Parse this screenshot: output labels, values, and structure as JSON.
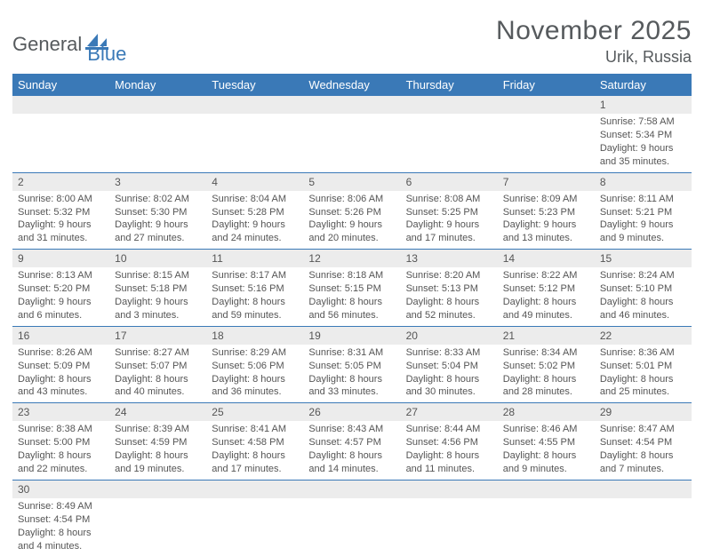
{
  "logo": {
    "part1": "General",
    "part2": "Blue"
  },
  "title": "November 2025",
  "location": "Urik, Russia",
  "colors": {
    "header_bg": "#3a79b7",
    "header_text": "#ffffff",
    "daynum_bg": "#ececec",
    "text": "#555555",
    "border": "#3a79b7",
    "logo_gray": "#565a5d",
    "logo_blue": "#3a79b7"
  },
  "weekdays": [
    "Sunday",
    "Monday",
    "Tuesday",
    "Wednesday",
    "Thursday",
    "Friday",
    "Saturday"
  ],
  "weeks": [
    [
      {
        "n": "",
        "sr": "",
        "ss": "",
        "dl": ""
      },
      {
        "n": "",
        "sr": "",
        "ss": "",
        "dl": ""
      },
      {
        "n": "",
        "sr": "",
        "ss": "",
        "dl": ""
      },
      {
        "n": "",
        "sr": "",
        "ss": "",
        "dl": ""
      },
      {
        "n": "",
        "sr": "",
        "ss": "",
        "dl": ""
      },
      {
        "n": "",
        "sr": "",
        "ss": "",
        "dl": ""
      },
      {
        "n": "1",
        "sr": "Sunrise: 7:58 AM",
        "ss": "Sunset: 5:34 PM",
        "dl": "Daylight: 9 hours and 35 minutes."
      }
    ],
    [
      {
        "n": "2",
        "sr": "Sunrise: 8:00 AM",
        "ss": "Sunset: 5:32 PM",
        "dl": "Daylight: 9 hours and 31 minutes."
      },
      {
        "n": "3",
        "sr": "Sunrise: 8:02 AM",
        "ss": "Sunset: 5:30 PM",
        "dl": "Daylight: 9 hours and 27 minutes."
      },
      {
        "n": "4",
        "sr": "Sunrise: 8:04 AM",
        "ss": "Sunset: 5:28 PM",
        "dl": "Daylight: 9 hours and 24 minutes."
      },
      {
        "n": "5",
        "sr": "Sunrise: 8:06 AM",
        "ss": "Sunset: 5:26 PM",
        "dl": "Daylight: 9 hours and 20 minutes."
      },
      {
        "n": "6",
        "sr": "Sunrise: 8:08 AM",
        "ss": "Sunset: 5:25 PM",
        "dl": "Daylight: 9 hours and 17 minutes."
      },
      {
        "n": "7",
        "sr": "Sunrise: 8:09 AM",
        "ss": "Sunset: 5:23 PM",
        "dl": "Daylight: 9 hours and 13 minutes."
      },
      {
        "n": "8",
        "sr": "Sunrise: 8:11 AM",
        "ss": "Sunset: 5:21 PM",
        "dl": "Daylight: 9 hours and 9 minutes."
      }
    ],
    [
      {
        "n": "9",
        "sr": "Sunrise: 8:13 AM",
        "ss": "Sunset: 5:20 PM",
        "dl": "Daylight: 9 hours and 6 minutes."
      },
      {
        "n": "10",
        "sr": "Sunrise: 8:15 AM",
        "ss": "Sunset: 5:18 PM",
        "dl": "Daylight: 9 hours and 3 minutes."
      },
      {
        "n": "11",
        "sr": "Sunrise: 8:17 AM",
        "ss": "Sunset: 5:16 PM",
        "dl": "Daylight: 8 hours and 59 minutes."
      },
      {
        "n": "12",
        "sr": "Sunrise: 8:18 AM",
        "ss": "Sunset: 5:15 PM",
        "dl": "Daylight: 8 hours and 56 minutes."
      },
      {
        "n": "13",
        "sr": "Sunrise: 8:20 AM",
        "ss": "Sunset: 5:13 PM",
        "dl": "Daylight: 8 hours and 52 minutes."
      },
      {
        "n": "14",
        "sr": "Sunrise: 8:22 AM",
        "ss": "Sunset: 5:12 PM",
        "dl": "Daylight: 8 hours and 49 minutes."
      },
      {
        "n": "15",
        "sr": "Sunrise: 8:24 AM",
        "ss": "Sunset: 5:10 PM",
        "dl": "Daylight: 8 hours and 46 minutes."
      }
    ],
    [
      {
        "n": "16",
        "sr": "Sunrise: 8:26 AM",
        "ss": "Sunset: 5:09 PM",
        "dl": "Daylight: 8 hours and 43 minutes."
      },
      {
        "n": "17",
        "sr": "Sunrise: 8:27 AM",
        "ss": "Sunset: 5:07 PM",
        "dl": "Daylight: 8 hours and 40 minutes."
      },
      {
        "n": "18",
        "sr": "Sunrise: 8:29 AM",
        "ss": "Sunset: 5:06 PM",
        "dl": "Daylight: 8 hours and 36 minutes."
      },
      {
        "n": "19",
        "sr": "Sunrise: 8:31 AM",
        "ss": "Sunset: 5:05 PM",
        "dl": "Daylight: 8 hours and 33 minutes."
      },
      {
        "n": "20",
        "sr": "Sunrise: 8:33 AM",
        "ss": "Sunset: 5:04 PM",
        "dl": "Daylight: 8 hours and 30 minutes."
      },
      {
        "n": "21",
        "sr": "Sunrise: 8:34 AM",
        "ss": "Sunset: 5:02 PM",
        "dl": "Daylight: 8 hours and 28 minutes."
      },
      {
        "n": "22",
        "sr": "Sunrise: 8:36 AM",
        "ss": "Sunset: 5:01 PM",
        "dl": "Daylight: 8 hours and 25 minutes."
      }
    ],
    [
      {
        "n": "23",
        "sr": "Sunrise: 8:38 AM",
        "ss": "Sunset: 5:00 PM",
        "dl": "Daylight: 8 hours and 22 minutes."
      },
      {
        "n": "24",
        "sr": "Sunrise: 8:39 AM",
        "ss": "Sunset: 4:59 PM",
        "dl": "Daylight: 8 hours and 19 minutes."
      },
      {
        "n": "25",
        "sr": "Sunrise: 8:41 AM",
        "ss": "Sunset: 4:58 PM",
        "dl": "Daylight: 8 hours and 17 minutes."
      },
      {
        "n": "26",
        "sr": "Sunrise: 8:43 AM",
        "ss": "Sunset: 4:57 PM",
        "dl": "Daylight: 8 hours and 14 minutes."
      },
      {
        "n": "27",
        "sr": "Sunrise: 8:44 AM",
        "ss": "Sunset: 4:56 PM",
        "dl": "Daylight: 8 hours and 11 minutes."
      },
      {
        "n": "28",
        "sr": "Sunrise: 8:46 AM",
        "ss": "Sunset: 4:55 PM",
        "dl": "Daylight: 8 hours and 9 minutes."
      },
      {
        "n": "29",
        "sr": "Sunrise: 8:47 AM",
        "ss": "Sunset: 4:54 PM",
        "dl": "Daylight: 8 hours and 7 minutes."
      }
    ],
    [
      {
        "n": "30",
        "sr": "Sunrise: 8:49 AM",
        "ss": "Sunset: 4:54 PM",
        "dl": "Daylight: 8 hours and 4 minutes."
      },
      {
        "n": "",
        "sr": "",
        "ss": "",
        "dl": ""
      },
      {
        "n": "",
        "sr": "",
        "ss": "",
        "dl": ""
      },
      {
        "n": "",
        "sr": "",
        "ss": "",
        "dl": ""
      },
      {
        "n": "",
        "sr": "",
        "ss": "",
        "dl": ""
      },
      {
        "n": "",
        "sr": "",
        "ss": "",
        "dl": ""
      },
      {
        "n": "",
        "sr": "",
        "ss": "",
        "dl": ""
      }
    ]
  ]
}
